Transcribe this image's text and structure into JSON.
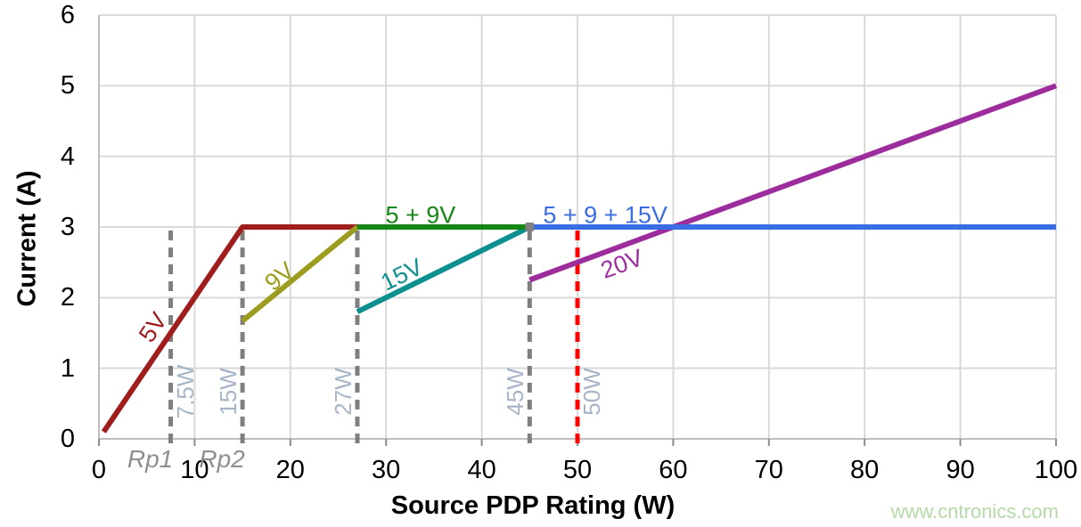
{
  "watermark": {
    "text": "www.cntronics.com",
    "color": "#b5d9a8"
  },
  "chart_data": {
    "type": "line",
    "title": "",
    "xlabel": "Source PDP Rating (W)",
    "ylabel": "Current (A)",
    "xlim": [
      0,
      100
    ],
    "ylim": [
      0,
      6
    ],
    "x_ticks": [
      0,
      10,
      20,
      30,
      40,
      50,
      60,
      70,
      80,
      90,
      100
    ],
    "y_ticks": [
      0,
      1,
      2,
      3,
      4,
      5,
      6
    ],
    "grid": true,
    "legend_position": "inline-labels",
    "colors": {
      "grid": "#d9d9d9",
      "axis": "#bfbfbf",
      "tick_mark": "#8c8c8c",
      "tick_label": "#000000",
      "vline_gray": "#7f7f7f",
      "vline_red": "#ff0000",
      "vline_label": "#a7b6c7",
      "rp_label": "#8f8f8f"
    },
    "series": [
      {
        "name": "5V",
        "color": "#a01d1d",
        "points": [
          [
            0.5,
            0.1
          ],
          [
            15,
            3
          ],
          [
            27,
            3
          ]
        ],
        "label": {
          "text": "5V",
          "x": 5.7,
          "y": 1.58,
          "angle": -56
        }
      },
      {
        "name": "9V",
        "color": "#9c9c1e",
        "points": [
          [
            15,
            1.67
          ],
          [
            27,
            3
          ]
        ],
        "label": {
          "text": "9V",
          "x": 18.9,
          "y": 2.29,
          "angle": -39
        }
      },
      {
        "name": "15V",
        "color": "#0e9090",
        "points": [
          [
            27,
            1.8
          ],
          [
            45,
            3
          ]
        ],
        "label": {
          "text": "15V",
          "x": 31.7,
          "y": 2.32,
          "angle": -26
        }
      },
      {
        "name": "20V",
        "color": "#9d2d9d",
        "points": [
          [
            45,
            2.25
          ],
          [
            100,
            5
          ]
        ],
        "label": {
          "text": "20V",
          "x": 54.7,
          "y": 2.47,
          "angle": -20
        }
      },
      {
        "name": "5 + 9V",
        "color": "#168716",
        "points": [
          [
            27,
            3
          ],
          [
            45,
            3
          ]
        ],
        "label": {
          "text": "5 + 9V",
          "x": 33.6,
          "y": 3.16,
          "angle": 0
        }
      },
      {
        "name": "5 + 9 + 15V",
        "color": "#3a6de4",
        "points": [
          [
            45,
            3
          ],
          [
            100,
            3
          ]
        ],
        "label": {
          "text": "5 + 9 + 15V",
          "x": 52.9,
          "y": 3.16,
          "angle": 0
        }
      }
    ],
    "vlines": [
      {
        "x": 7.5,
        "y_top": 3,
        "color": "#7f7f7f",
        "label": "7.5W",
        "label_side": "right",
        "sub_label": "Rp1"
      },
      {
        "x": 15,
        "y_top": 3,
        "color": "#7f7f7f",
        "label": "15W",
        "label_side": "left",
        "sub_label": "Rp2"
      },
      {
        "x": 27,
        "y_top": 3,
        "color": "#7f7f7f",
        "label": "27W",
        "label_side": "left",
        "sub_label": ""
      },
      {
        "x": 45,
        "y_top": 3,
        "color": "#7f7f7f",
        "label": "45W",
        "label_side": "left",
        "sub_label": ""
      },
      {
        "x": 50,
        "y_top": 3,
        "color": "#ff0000",
        "label": "50W",
        "label_side": "right",
        "sub_label": ""
      }
    ],
    "markers": [
      {
        "x": 45,
        "y": 3,
        "color": "#7f7f7f",
        "size": 10
      }
    ]
  }
}
